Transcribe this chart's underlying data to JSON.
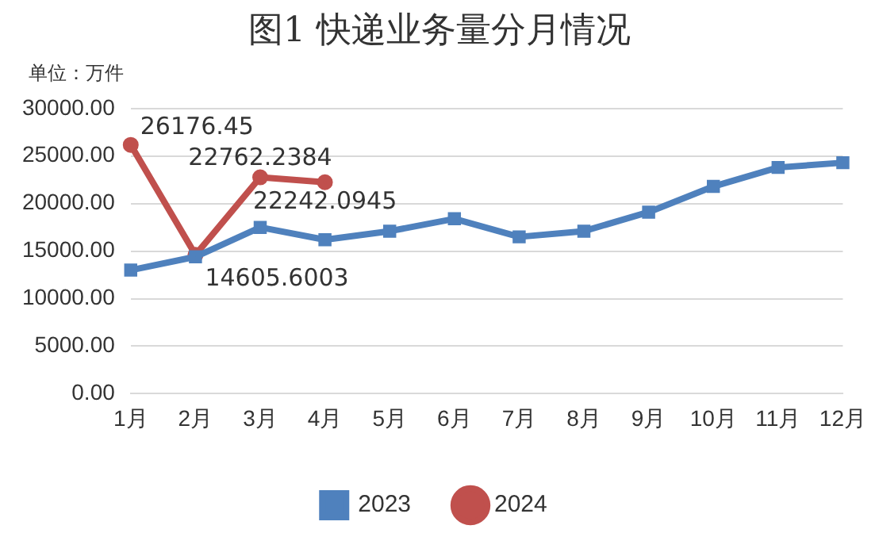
{
  "chart_data": {
    "type": "line",
    "title": "图1  快递业务量分月情况",
    "annotations": [
      "单位：万件"
    ],
    "categories": [
      "1月",
      "2月",
      "3月",
      "4月",
      "5月",
      "6月",
      "7月",
      "8月",
      "9月",
      "10月",
      "11月",
      "12月"
    ],
    "ylim": [
      0,
      30000
    ],
    "yticks": [
      {
        "value": 0,
        "label": "0.00"
      },
      {
        "value": 5000,
        "label": "5000.00"
      },
      {
        "value": 10000,
        "label": "10000.00"
      },
      {
        "value": 15000,
        "label": "15000.00"
      },
      {
        "value": 20000,
        "label": "20000.00"
      },
      {
        "value": 25000,
        "label": "25000.00"
      },
      {
        "value": 30000,
        "label": "30000.00"
      }
    ],
    "grid": "y",
    "legend": "bottom",
    "series": [
      {
        "name": "2023",
        "color": "#4f81bd",
        "marker": "square",
        "values": [
          13000,
          14400,
          17500,
          16200,
          17100,
          18400,
          16500,
          17100,
          19100,
          21800,
          23800,
          24300
        ]
      },
      {
        "name": "2024",
        "color": "#c0504d",
        "marker": "circle",
        "values": [
          26176.45,
          14605.6003,
          22762.2384,
          22242.0945,
          null,
          null,
          null,
          null,
          null,
          null,
          null,
          null
        ],
        "value_labels": [
          "26176.45",
          "14605.6003",
          "22762.2384",
          "22242.0945",
          null,
          null,
          null,
          null,
          null,
          null,
          null,
          null
        ]
      }
    ]
  }
}
